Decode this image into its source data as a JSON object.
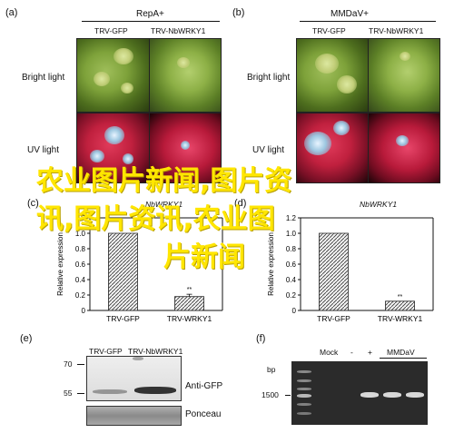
{
  "panels": {
    "a": {
      "letter": "(a)",
      "title": "RepA+",
      "col1": "TRV-GFP",
      "col2": "TRV-NbWRKY1",
      "row1": "Bright light",
      "row2": "UV light"
    },
    "b": {
      "letter": "(b)",
      "title": "MMDaV+",
      "col1": "TRV-GFP",
      "col2": "TRV-NbWRKY1",
      "row1": "Bright light",
      "row2": "UV light"
    },
    "c": {
      "letter": "(c)",
      "title": "NbWRKY1",
      "ylabel": "Relative expression",
      "sig": "**"
    },
    "d": {
      "letter": "(d)",
      "title": "NbWRKY1",
      "ylabel": "Relative expression",
      "sig": "**"
    },
    "e": {
      "letter": "(e)",
      "col1": "TRV-GFP",
      "col2": "TRV-NbWRKY1",
      "marker70": "70",
      "marker55": "55",
      "row1": "Anti-GFP",
      "row2": "Ponceau"
    },
    "f": {
      "letter": "(f)",
      "unit": "bp",
      "marker": "1500",
      "mock": "Mock",
      "minus": "-",
      "plus": "+",
      "mmdav": "MMDaV"
    }
  },
  "chart_data": [
    {
      "type": "bar",
      "panel": "c",
      "categories": [
        "TRV-GFP",
        "TRV-WRKY1"
      ],
      "values": [
        1.0,
        0.18
      ],
      "errors": [
        0.0,
        0.03
      ],
      "ylabel": "Relative expression",
      "ylim": [
        0,
        1.2
      ],
      "yticks": [
        "0",
        "0.2",
        "0.4",
        "0.6",
        "0.8",
        "1.0",
        "1.2"
      ]
    },
    {
      "type": "bar",
      "panel": "d",
      "categories": [
        "TRV-GFP",
        "TRV-WRKY1"
      ],
      "values": [
        1.0,
        0.12
      ],
      "errors": [
        0.0,
        0.0
      ],
      "ylabel": "Relative expression",
      "ylim": [
        0,
        1.2
      ],
      "yticks": [
        "0",
        "0.2",
        "0.4",
        "0.6",
        "0.8",
        "1.0",
        "1.2"
      ]
    }
  ],
  "watermark": {
    "line1": "农业图片新闻,图片资",
    "line2": "讯,图片资讯,农业图",
    "line3": "片新闻"
  }
}
